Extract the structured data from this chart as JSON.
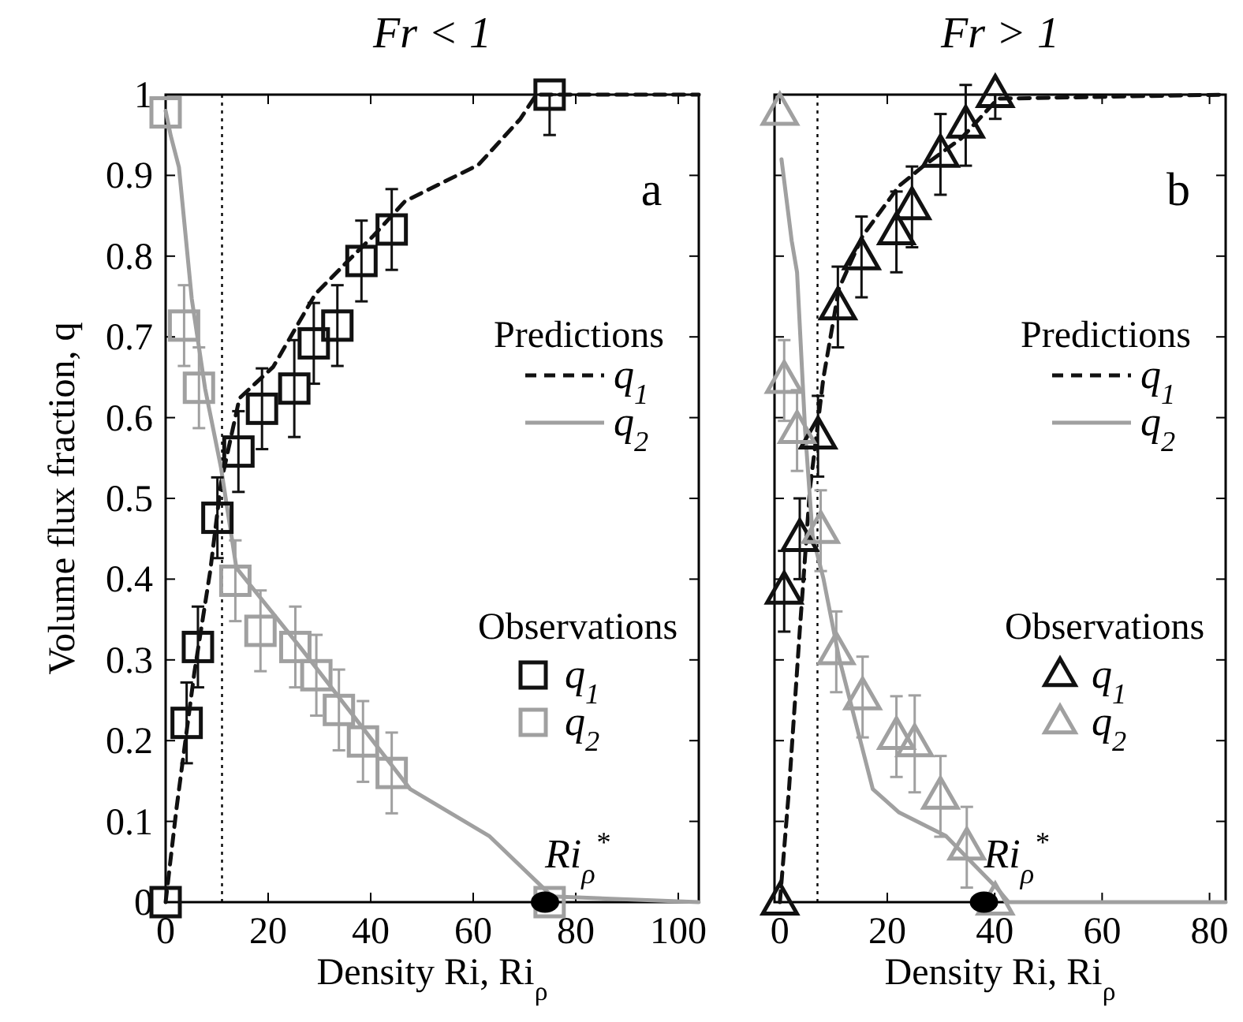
{
  "chart_data": [
    {
      "type": "scatter",
      "title": "Fr < 1",
      "xlabel": "Density Ri, Ri$_{ρ}$",
      "ylabel": "Volume  flux fraction, q",
      "xlim": [
        0,
        104
      ],
      "ylim": [
        0,
        1
      ],
      "xticks": [
        0,
        20,
        40,
        60,
        80,
        100
      ],
      "yticks": [
        0,
        0.1,
        0.2,
        0.3,
        0.4,
        0.5,
        0.6,
        0.7,
        0.8,
        0.9,
        1
      ],
      "grid": false,
      "legend": "right",
      "annotations": [
        "a",
        "Predictions",
        "Observations",
        {
          "text": "Ri$_{ρ}$$^{*}$",
          "x": 74,
          "y": 0
        }
      ],
      "ref_lines": [
        {
          "axis": "x",
          "value": 11,
          "line_style": "dotted",
          "color": "#000000"
        }
      ],
      "series": [
        {
          "name": "q$_{1}$",
          "type": "line",
          "line_style": "dashed",
          "marker": "none",
          "color": "#111111",
          "x": [
            0,
            2.1,
            5.6,
            8.7,
            10.8,
            14.4,
            21,
            29.2,
            35.4,
            40.5,
            46.7,
            61,
            69.2,
            72.3,
            104
          ],
          "values": [
            0,
            0.115,
            0.284,
            0.41,
            0.519,
            0.624,
            0.663,
            0.753,
            0.793,
            0.825,
            0.868,
            0.913,
            0.97,
            1,
            1
          ]
        },
        {
          "name": "q$_{2}$",
          "type": "line",
          "line_style": "solid",
          "marker": "none",
          "color": "#a0a0a0",
          "x": [
            0,
            1,
            2.6,
            5.1,
            7.7,
            10.8,
            13.8,
            26.2,
            47.7,
            63.1,
            75.4,
            104
          ],
          "values": [
            0.98,
            0.949,
            0.91,
            0.747,
            0.636,
            0.538,
            0.414,
            0.316,
            0.14,
            0.082,
            0.007,
            0
          ]
        },
        {
          "name": "q$_{1}$",
          "marker": "square",
          "color": "#111111",
          "x": [
            0,
            4.1,
            6.3,
            10.1,
            14.2,
            18.8,
            25.1,
            28.9,
            33.5,
            38.2,
            44.1,
            74.9
          ],
          "values": [
            0,
            0.222,
            0.316,
            0.476,
            0.558,
            0.611,
            0.636,
            0.692,
            0.714,
            0.794,
            0.833,
            1
          ],
          "errors": [
            null,
            0.05,
            0.05,
            0.05,
            0.05,
            0.05,
            0.06,
            0.05,
            0.05,
            0.05,
            0.05,
            [
              0.95,
              1
            ]
          ]
        },
        {
          "name": "q$_{2}$",
          "marker": "square",
          "color": "#a0a0a0",
          "x": [
            0,
            3.6,
            6.5,
            13.6,
            18.5,
            25.3,
            29.4,
            33.8,
            38.5,
            44.1,
            74.9
          ],
          "values": [
            0.978,
            0.714,
            0.637,
            0.398,
            0.336,
            0.316,
            0.281,
            0.238,
            0.199,
            0.16,
            0
          ],
          "errors": [
            null,
            0.05,
            0.05,
            0.05,
            0.05,
            0.05,
            0.05,
            0.05,
            0.05,
            0.05,
            null
          ]
        },
        {
          "marker": "circle",
          "color": "#000000",
          "x": [
            74
          ],
          "values": [
            0
          ]
        }
      ]
    },
    {
      "type": "scatter",
      "title": "Fr > 1",
      "xlabel": "Density Ri, Ri$_{ρ}$",
      "xlim": [
        -1,
        83
      ],
      "ylim": [
        0,
        1
      ],
      "xticks": [
        0,
        20,
        40,
        60,
        80
      ],
      "yticks": [
        0,
        0.1,
        0.2,
        0.3,
        0.4,
        0.5,
        0.6,
        0.7,
        0.8,
        0.9,
        1
      ],
      "tick_labels": "x",
      "grid": false,
      "legend": "right",
      "annotations": [
        "b",
        "Predictions",
        "Observations",
        {
          "text": "Ri$_{ρ}$$^{*}$",
          "x": 38,
          "y": 0
        }
      ],
      "ref_lines": [
        {
          "axis": "x",
          "value": 7,
          "line_style": "dotted",
          "color": "#000000"
        }
      ],
      "series": [
        {
          "name": "q$_{1}$",
          "type": "line",
          "line_style": "dashed",
          "marker": "none",
          "color": "#111111",
          "x": [
            0,
            1.7,
            3.7,
            5.6,
            8.1,
            11,
            15.4,
            22.2,
            27,
            33.8,
            40.6,
            83
          ],
          "values": [
            0,
            0.14,
            0.336,
            0.512,
            0.649,
            0.76,
            0.825,
            0.887,
            0.913,
            0.946,
            0.995,
            1
          ]
        },
        {
          "name": "q$_{2}$",
          "type": "line",
          "line_style": "solid",
          "marker": "none",
          "color": "#a0a0a0",
          "x": [
            0.3,
            2.2,
            3.2,
            4.7,
            6.1,
            8.1,
            11,
            17.3,
            22.2,
            30.9,
            40.6,
            42.6,
            83
          ],
          "values": [
            0.92,
            0.819,
            0.78,
            0.584,
            0.453,
            0.401,
            0.303,
            0.14,
            0.111,
            0.082,
            0.016,
            0,
            0
          ]
        },
        {
          "name": "q$_{1}$",
          "marker": "triangle",
          "color": "#111111",
          "x": [
            0,
            0.8,
            3.7,
            7.1,
            10.8,
            15.2,
            21.7,
            24.6,
            29.9,
            34.6,
            40.1
          ],
          "values": [
            0,
            0.385,
            0.45,
            0.577,
            0.737,
            0.799,
            0.83,
            0.861,
            0.926,
            0.962,
            1
          ],
          "errors": [
            null,
            0.05,
            0.05,
            0.05,
            0.05,
            0.05,
            0.05,
            0.05,
            0.05,
            0.05,
            [
              0.97,
              1
            ]
          ]
        },
        {
          "name": "q$_{2}$",
          "marker": "triangle",
          "color": "#a0a0a0",
          "x": [
            0,
            0.8,
            3.2,
            7.6,
            10.5,
            15.4,
            21.7,
            25.1,
            29.9,
            34.8,
            40.1
          ],
          "values": [
            0.978,
            0.646,
            0.584,
            0.46,
            0.31,
            0.254,
            0.205,
            0.196,
            0.131,
            0.068,
            0
          ],
          "errors": [
            null,
            0.05,
            0.05,
            0.05,
            0.05,
            0.05,
            0.05,
            0.06,
            0.05,
            0.05,
            null
          ]
        },
        {
          "marker": "circle",
          "color": "#000000",
          "x": [
            38
          ],
          "values": [
            0
          ]
        }
      ]
    }
  ]
}
